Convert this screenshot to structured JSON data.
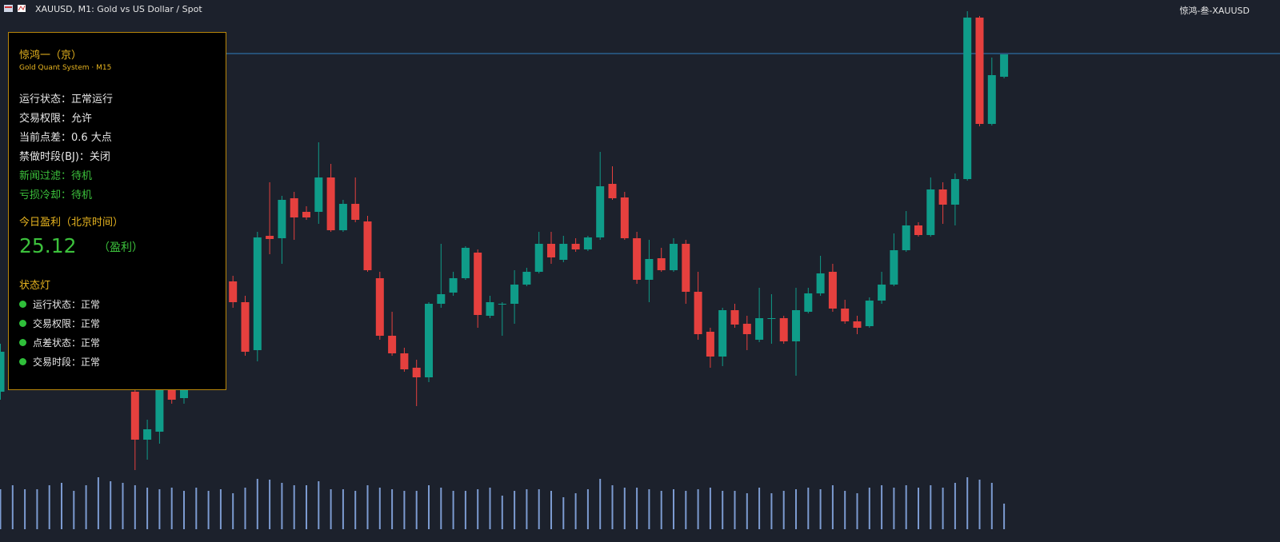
{
  "header": {
    "symbol": "XAUUSD, M1:  Gold vs US Dollar / Spot",
    "account": "惊鸿-叁-XAUUSD"
  },
  "panel": {
    "title": "惊鸿一（京）",
    "subtitle": "Gold Quant System · M15",
    "status": [
      "运行状态：正常运行",
      "交易权限：允许",
      "当前点差：0.6 大点",
      "禁做时段(BJ)：关闭"
    ],
    "filters": [
      "新闻过滤：待机",
      "亏损冷却：待机"
    ],
    "profit_title": "今日盈利（北京时间）",
    "profit": "25.12",
    "profit_note": "（盈利）",
    "lights_title": "状态灯",
    "lights": [
      "运行状态：正常",
      "交易权限：正常",
      "点差状态：正常",
      "交易时段：正常"
    ]
  },
  "chart_data": {
    "type": "candlestick",
    "up_color": "#0f9c89",
    "down_color": "#e5403e",
    "volume_color": "#7c9bd1",
    "line_color": "#2f7fc1",
    "ylim": [
      22,
      700
    ],
    "volume_lim": [
      0,
      100
    ],
    "price_line": 633,
    "candles": [
      [
        210,
        270,
        200,
        260
      ],
      null,
      null,
      null,
      null,
      null,
      null,
      null,
      null,
      null,
      null,
      [
        210,
        220,
        112,
        150
      ],
      [
        150,
        175,
        125,
        163
      ],
      [
        160,
        215,
        145,
        212
      ],
      [
        212,
        220,
        195,
        200
      ],
      [
        202,
        215,
        195,
        212
      ],
      null,
      null,
      null,
      [
        348,
        355,
        315,
        322
      ],
      [
        322,
        330,
        255,
        260
      ],
      [
        262,
        410,
        248,
        403
      ],
      [
        405,
        472,
        382,
        401
      ],
      [
        402,
        455,
        370,
        450
      ],
      [
        452,
        460,
        400,
        428
      ],
      [
        435,
        442,
        425,
        428
      ],
      [
        435,
        522,
        420,
        478
      ],
      [
        478,
        495,
        410,
        412
      ],
      [
        412,
        450,
        410,
        445
      ],
      [
        445,
        478,
        422,
        425
      ],
      [
        423,
        430,
        360,
        362
      ],
      [
        352,
        360,
        275,
        280
      ],
      [
        280,
        310,
        255,
        258
      ],
      [
        258,
        265,
        235,
        238
      ],
      [
        240,
        250,
        192,
        228
      ],
      [
        228,
        322,
        222,
        320
      ],
      [
        320,
        395,
        315,
        332
      ],
      [
        334,
        360,
        330,
        352
      ],
      [
        352,
        392,
        350,
        390
      ],
      [
        384,
        388,
        290,
        306
      ],
      [
        305,
        330,
        302,
        322
      ],
      [
        320,
        322,
        280,
        320
      ],
      [
        320,
        362,
        295,
        344
      ],
      [
        344,
        365,
        342,
        360
      ],
      [
        360,
        410,
        358,
        395
      ],
      [
        395,
        410,
        370,
        378
      ],
      [
        375,
        405,
        372,
        395
      ],
      [
        395,
        402,
        385,
        388
      ],
      [
        388,
        405,
        386,
        403
      ],
      [
        403,
        510,
        400,
        467
      ],
      [
        470,
        492,
        450,
        452
      ],
      [
        453,
        460,
        400,
        402
      ],
      [
        402,
        410,
        345,
        350
      ],
      [
        350,
        400,
        322,
        376
      ],
      [
        377,
        390,
        360,
        362
      ],
      [
        362,
        402,
        360,
        395
      ],
      [
        395,
        400,
        320,
        335
      ],
      [
        335,
        360,
        275,
        282
      ],
      [
        285,
        290,
        240,
        254
      ],
      [
        254,
        315,
        242,
        312
      ],
      [
        312,
        320,
        290,
        294
      ],
      [
        295,
        305,
        262,
        282
      ],
      [
        275,
        340,
        272,
        302
      ],
      [
        302,
        332,
        270,
        302
      ],
      [
        302,
        305,
        270,
        273
      ],
      [
        273,
        340,
        230,
        312
      ],
      [
        310,
        340,
        308,
        333
      ],
      [
        333,
        380,
        330,
        358
      ],
      [
        360,
        370,
        310,
        314
      ],
      [
        314,
        325,
        295,
        298
      ],
      [
        298,
        305,
        282,
        290
      ],
      [
        292,
        328,
        290,
        324
      ],
      [
        324,
        360,
        320,
        344
      ],
      [
        344,
        408,
        342,
        387
      ],
      [
        387,
        436,
        385,
        418
      ],
      [
        418,
        422,
        404,
        406
      ],
      [
        406,
        478,
        404,
        463
      ],
      [
        463,
        472,
        420,
        444
      ],
      [
        444,
        483,
        418,
        476
      ],
      [
        476,
        686,
        474,
        678
      ],
      [
        678,
        680,
        542,
        545
      ],
      [
        545,
        628,
        543,
        606
      ],
      [
        604,
        632,
        602,
        632
      ]
    ],
    "volume": [
      50,
      55,
      50,
      50,
      55,
      58,
      48,
      55,
      65,
      60,
      58,
      55,
      52,
      50,
      52,
      48,
      52,
      48,
      50,
      45,
      52,
      63,
      62,
      58,
      55,
      55,
      60,
      50,
      50,
      48,
      55,
      52,
      50,
      48,
      48,
      55,
      52,
      48,
      48,
      50,
      52,
      42,
      48,
      50,
      50,
      48,
      40,
      45,
      50,
      63,
      55,
      52,
      52,
      50,
      48,
      50,
      48,
      50,
      52,
      48,
      48,
      45,
      52,
      45,
      48,
      50,
      52,
      50,
      55,
      48,
      45,
      52,
      55,
      52,
      55,
      52,
      55,
      52,
      58,
      65,
      62,
      58,
      32
    ]
  }
}
